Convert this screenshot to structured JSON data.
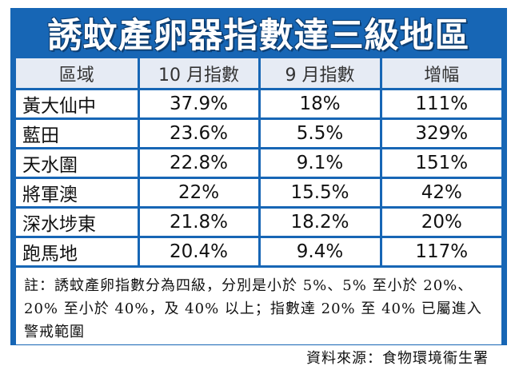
{
  "title": "誘蚊產卵器指數達三級地區",
  "table": {
    "headers": [
      "區域",
      "10 月指數",
      "9 月指數",
      "增幅"
    ],
    "rows": [
      [
        "黃大仙中",
        "37.9%",
        "18%",
        "111%"
      ],
      [
        "藍田",
        "23.6%",
        "5.5%",
        "329%"
      ],
      [
        "天水圍",
        "22.8%",
        "9.1%",
        "151%"
      ],
      [
        "將軍澳",
        "22%",
        "15.5%",
        "42%"
      ],
      [
        "深水埗東",
        "21.8%",
        "18.2%",
        "20%"
      ],
      [
        "跑馬地",
        "20.4%",
        "9.4%",
        "117%"
      ]
    ]
  },
  "note": "註：誘蚊產卵指數分為四級，分別是小於 5%、5% 至小於 20%、20% 至小於 40%，及 40% 以上；指數達 20% 至 40% 已屬進入警戒範圍",
  "source": "資料來源：食物環境衞生署",
  "colors": {
    "frame_blue": "#1766b5",
    "header_bg": "#e6ebf4"
  }
}
